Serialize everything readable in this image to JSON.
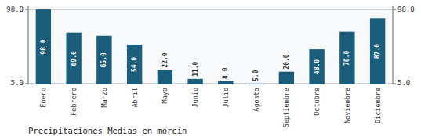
{
  "chart_data": {
    "type": "bar",
    "title": "Precipitaciones Medias en morcin",
    "categories": [
      "Enero",
      "Febrero",
      "Marzo",
      "Abril",
      "Mayo",
      "Junio",
      "Julio",
      "Agosto",
      "Septiembre",
      "Octubre",
      "Noviembre",
      "Diciembre"
    ],
    "values": [
      98.0,
      69.0,
      65.0,
      54.0,
      22.0,
      11.0,
      8.0,
      5.0,
      20.0,
      48.0,
      70.0,
      87.0
    ],
    "value_labels": [
      "98.0",
      "69.0",
      "65.0",
      "54.0",
      "22.0",
      "11.0",
      "8.0",
      "5.0",
      "20.0",
      "48.0",
      "70.0",
      "87.0"
    ],
    "data_labels": true,
    "color": "#1b5e7b",
    "ylim": [
      4.0,
      102.0
    ],
    "yticks": [
      {
        "value": 5.0,
        "label": "5.0"
      },
      {
        "value": 98.0,
        "label": "98.0"
      }
    ],
    "grid": true
  }
}
